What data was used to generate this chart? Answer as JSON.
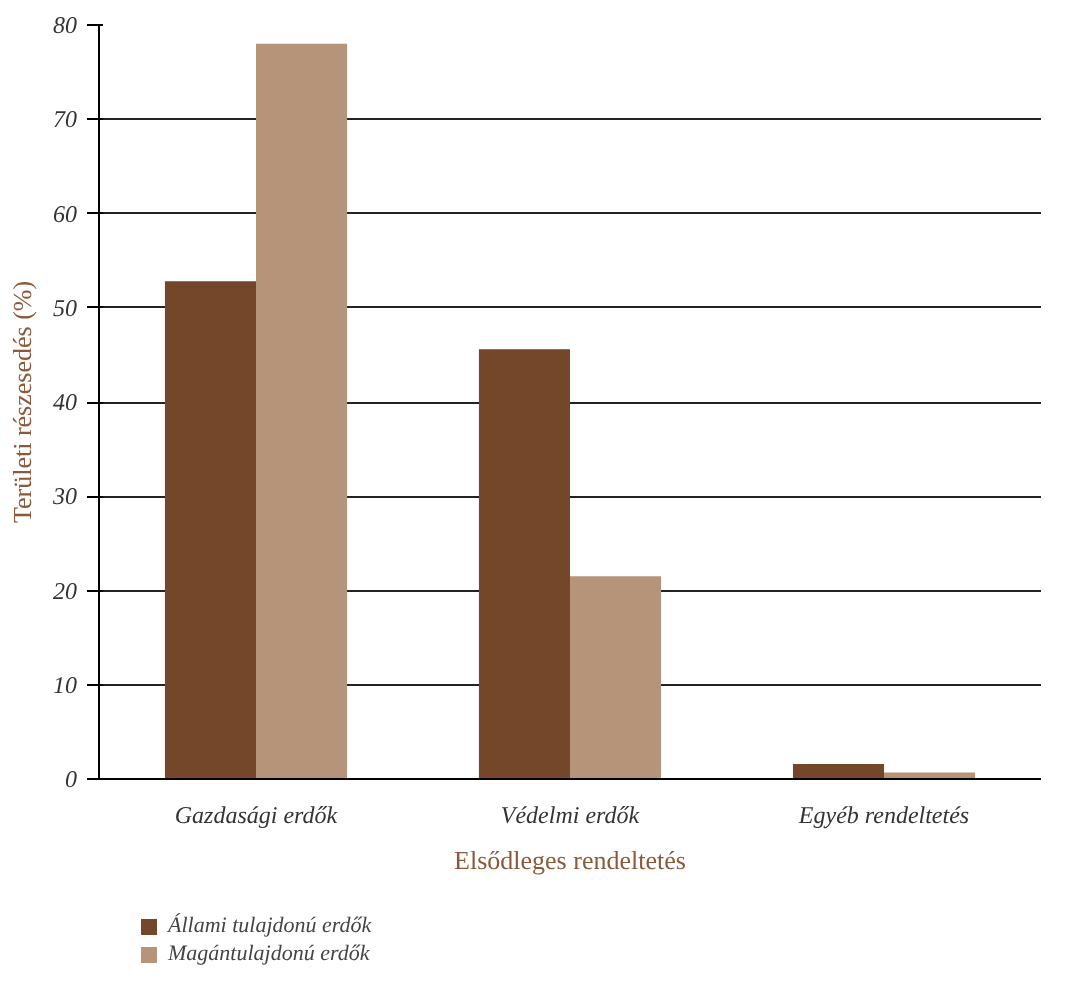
{
  "chart_data": {
    "type": "bar",
    "xlabel": "Elsődleges rendeltetés",
    "ylabel": "Területi részesedés (%)",
    "categories": [
      "Gazdasági erdők",
      "Védelmi erdők",
      "Egyéb rendeltetés"
    ],
    "series": [
      {
        "name": "Állami tulajdonú erdők",
        "color": "#74462a",
        "values": [
          52.8,
          45.6,
          1.6
        ]
      },
      {
        "name": "Magántulajdonú erdők",
        "color": "#b5947a",
        "values": [
          78.0,
          21.5,
          0.7
        ]
      }
    ],
    "ylim": [
      0,
      80
    ],
    "yticks": [
      0,
      10,
      20,
      30,
      40,
      50,
      60,
      70,
      80
    ],
    "grid": "y",
    "legend": "bottom"
  }
}
